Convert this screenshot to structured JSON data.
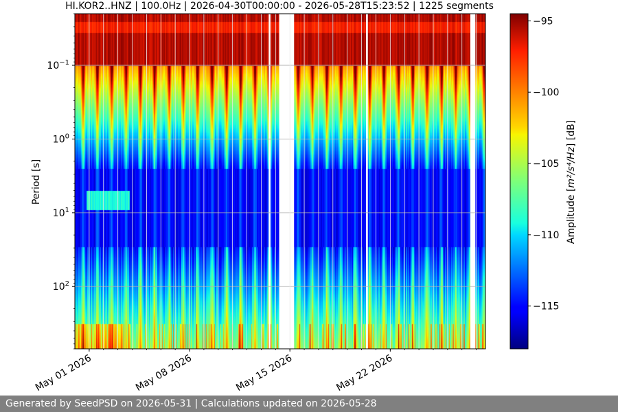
{
  "chart_data": {
    "type": "heatmap",
    "title": "HI.KOR2..HNZ | 100.0Hz | 2026-04-30T00:00:00 - 2026-05-28T15:23:52 | 1225 segments",
    "ylabel": "Period [s]",
    "xlabel": "",
    "y_scale": "log",
    "y_inverted": true,
    "ylim": [
      0.02,
      700
    ],
    "y_ticks": [
      {
        "value": 0.1,
        "base": "10",
        "exp": "−1"
      },
      {
        "value": 1,
        "base": "10",
        "exp": "0"
      },
      {
        "value": 10,
        "base": "10",
        "exp": "1"
      },
      {
        "value": 100,
        "base": "10",
        "exp": "2"
      }
    ],
    "x_start": "2026-04-30T00:00:00",
    "x_end": "2026-05-28T15:23:52",
    "x_ticks": [
      {
        "date": "2026-05-01",
        "label": "May 01 2026"
      },
      {
        "date": "2026-05-08",
        "label": "May 08 2026"
      },
      {
        "date": "2026-05-15",
        "label": "May 15 2026"
      },
      {
        "date": "2026-05-22",
        "label": "May 22 2026"
      }
    ],
    "grid": true,
    "colormap": "jet",
    "colorbar": {
      "label_prefix": "Amplitude [",
      "label_math": "m²/s⁴/Hz",
      "label_suffix": "] [dB]",
      "vmin": -118,
      "vmax": -94.5,
      "ticks": [
        {
          "value": -95,
          "label": "−95"
        },
        {
          "value": -100,
          "label": "−100"
        },
        {
          "value": -105,
          "label": "−105"
        },
        {
          "value": -110,
          "label": "−110"
        },
        {
          "value": -115,
          "label": "−115"
        }
      ]
    },
    "data_gaps": [
      [
        "2026-05-13T12:30:00",
        "2026-05-13T15:30:00"
      ],
      [
        "2026-05-14T06:00:00",
        "2026-05-15T07:00:00"
      ],
      [
        "2026-05-20T07:30:00",
        "2026-05-20T10:30:00"
      ],
      [
        "2026-05-27T14:00:00",
        "2026-05-27T22:30:00"
      ]
    ]
  },
  "footer": {
    "text": "Generated by SeedPSD on 2026-05-31 | Calculations updated on 2026-05-28"
  }
}
